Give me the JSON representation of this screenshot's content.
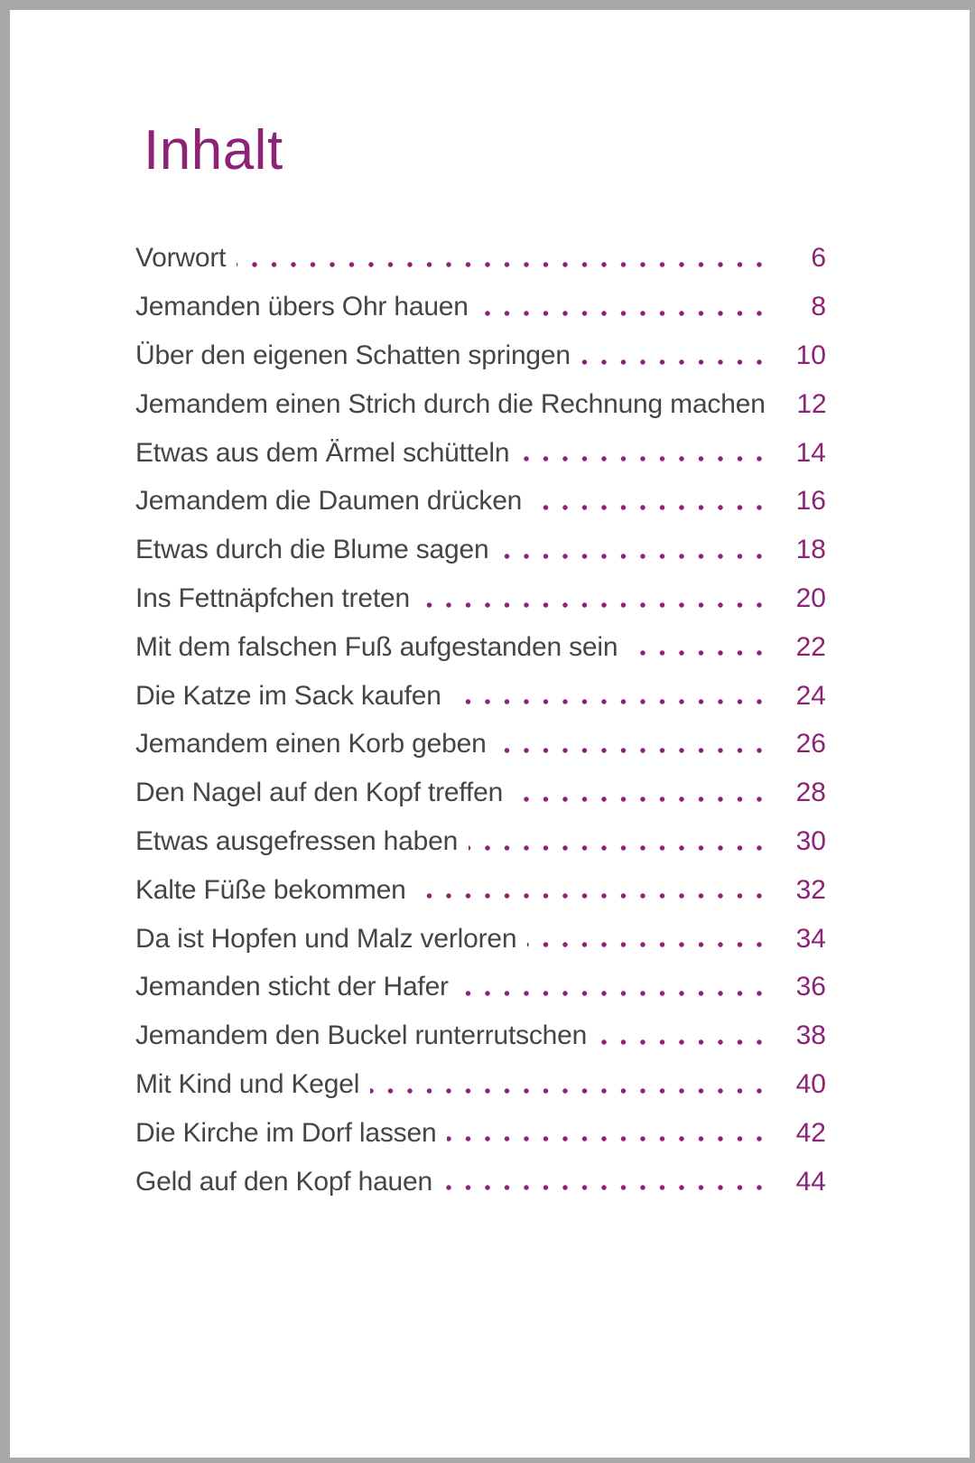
{
  "page": {
    "title": "Inhalt",
    "accent_color": "#8d2377",
    "text_color": "#454545",
    "border_color": "#a9a9a9",
    "background_color": "#ffffff"
  },
  "toc": {
    "leader_style": "dots",
    "entries": [
      {
        "label": "Vorwort",
        "page": "6"
      },
      {
        "label": "Jemanden übers Ohr hauen",
        "page": "8"
      },
      {
        "label": "Über den eigenen Schatten springen",
        "page": "10"
      },
      {
        "label": "Jemandem einen Strich durch die Rechnung machen",
        "page": "12"
      },
      {
        "label": "Etwas aus dem Ärmel schütteln",
        "page": "14"
      },
      {
        "label": "Jemandem die Daumen drücken",
        "page": "16"
      },
      {
        "label": "Etwas durch die Blume sagen",
        "page": "18"
      },
      {
        "label": "Ins Fettnäpfchen treten",
        "page": "20"
      },
      {
        "label": "Mit dem falschen Fuß aufgestanden sein",
        "page": "22"
      },
      {
        "label": "Die Katze im Sack kaufen",
        "page": "24"
      },
      {
        "label": "Jemandem einen Korb geben",
        "page": "26"
      },
      {
        "label": "Den Nagel auf den Kopf treffen",
        "page": "28"
      },
      {
        "label": "Etwas ausgefressen haben",
        "page": "30"
      },
      {
        "label": "Kalte Füße bekommen",
        "page": "32"
      },
      {
        "label": "Da ist Hopfen und Malz verloren",
        "page": "34"
      },
      {
        "label": "Jemanden sticht der Hafer",
        "page": "36"
      },
      {
        "label": "Jemandem den Buckel runterrutschen",
        "page": "38"
      },
      {
        "label": "Mit Kind und Kegel",
        "page": "40"
      },
      {
        "label": "Die Kirche im Dorf lassen",
        "page": "42"
      },
      {
        "label": "Geld auf den Kopf hauen",
        "page": "44"
      }
    ]
  }
}
